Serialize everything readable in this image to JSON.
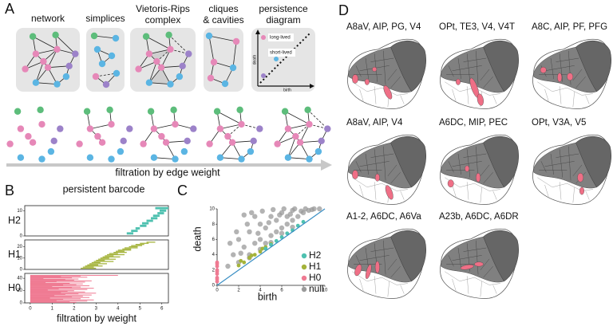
{
  "panel_a": {
    "label": "A",
    "steps": [
      [
        "network"
      ],
      [
        "simplices"
      ],
      [
        "Vietoris-Rips",
        "complex"
      ],
      [
        "cliques",
        "& cavities"
      ],
      [
        "persistence",
        "diagram"
      ]
    ],
    "diagram": {
      "long": "long-lived",
      "short": "short-lived",
      "x_label": "birth",
      "y_label": "death"
    },
    "filtration_label": "filtration by edge weight"
  },
  "chart_data": [
    {
      "type": "barcode",
      "panel_label": "B",
      "title": "persistent barcode",
      "x_label": "filtration by weight",
      "xlim": [
        -0.25,
        6.3
      ],
      "xticks": [
        0,
        1,
        2,
        3,
        4,
        5,
        6
      ],
      "panels": [
        {
          "name": "H2",
          "color": "#4fc1b0",
          "ylim": [
            0,
            12
          ],
          "yticks": [
            0,
            10
          ],
          "intervals": [
            [
              4.4,
              4.7
            ],
            [
              4.6,
              4.9
            ],
            [
              4.8,
              5.0
            ],
            [
              5.0,
              5.3
            ],
            [
              5.1,
              5.4
            ],
            [
              5.3,
              5.6
            ],
            [
              5.5,
              5.8
            ],
            [
              5.6,
              5.9
            ],
            [
              5.8,
              6.1
            ],
            [
              5.9,
              6.2
            ],
            [
              5.7,
              6.3
            ]
          ]
        },
        {
          "name": "H1",
          "color": "#a4b33a",
          "ylim": [
            0,
            26
          ],
          "yticks": [
            0,
            10,
            20
          ],
          "intervals": [
            [
              2.3,
              3.0
            ],
            [
              2.4,
              2.9
            ],
            [
              2.5,
              3.3
            ],
            [
              2.6,
              3.1
            ],
            [
              2.7,
              3.5
            ],
            [
              2.8,
              3.2
            ],
            [
              2.9,
              3.8
            ],
            [
              3.0,
              3.4
            ],
            [
              3.1,
              3.9
            ],
            [
              3.2,
              3.6
            ],
            [
              3.3,
              4.1
            ],
            [
              3.4,
              3.8
            ],
            [
              3.5,
              4.3
            ],
            [
              3.6,
              4.0
            ],
            [
              3.8,
              4.4
            ],
            [
              3.9,
              4.3
            ],
            [
              4.0,
              4.6
            ],
            [
              4.2,
              4.6
            ],
            [
              4.3,
              4.9
            ],
            [
              4.5,
              4.9
            ],
            [
              4.6,
              5.1
            ],
            [
              4.8,
              5.2
            ],
            [
              5.0,
              5.4
            ],
            [
              5.3,
              5.7
            ]
          ]
        },
        {
          "name": "H0",
          "color": "#ef7a92",
          "ylim": [
            0,
            48
          ],
          "yticks": [
            0,
            20,
            40
          ],
          "intervals": [
            [
              0,
              2.1
            ],
            [
              0,
              1.8
            ],
            [
              0,
              2.6
            ],
            [
              0,
              1.2
            ],
            [
              0,
              2.9
            ],
            [
              0,
              1.5
            ],
            [
              0,
              2.3
            ],
            [
              0,
              0.9
            ],
            [
              0,
              2.7
            ],
            [
              0,
              1.9
            ],
            [
              0,
              2.4
            ],
            [
              0,
              1.1
            ],
            [
              0,
              2.8
            ],
            [
              0,
              1.6
            ],
            [
              0,
              2.2
            ],
            [
              0,
              3.0
            ],
            [
              0,
              1.4
            ],
            [
              0,
              2.5
            ],
            [
              0,
              1.7
            ],
            [
              0,
              2.0
            ],
            [
              0,
              0.8
            ],
            [
              0,
              2.6
            ],
            [
              0,
              1.3
            ],
            [
              0,
              2.9
            ],
            [
              0,
              1.9
            ],
            [
              0,
              2.3
            ],
            [
              0,
              1.0
            ],
            [
              0,
              2.7
            ],
            [
              0,
              1.5
            ],
            [
              0,
              2.1
            ],
            [
              0,
              2.4
            ],
            [
              0,
              1.8
            ],
            [
              0,
              0.7
            ],
            [
              0,
              2.5
            ],
            [
              0,
              1.2
            ],
            [
              0,
              2.8
            ],
            [
              0,
              2.0
            ],
            [
              0,
              1.6
            ],
            [
              0,
              2.2
            ],
            [
              0,
              0.6
            ],
            [
              0,
              1.9
            ],
            [
              0,
              2.6
            ],
            [
              0,
              1.4
            ],
            [
              0,
              2.3
            ],
            [
              0,
              4.0
            ]
          ]
        }
      ]
    },
    {
      "type": "scatter",
      "panel_label": "C",
      "x_label": "birth",
      "y_label": "death",
      "xlim": [
        0,
        10
      ],
      "ylim": [
        0,
        10
      ],
      "xticks": [
        0,
        2,
        4,
        6,
        8,
        10
      ],
      "yticks": [
        0,
        2,
        4,
        6,
        8,
        10
      ],
      "series": [
        {
          "name": "H2",
          "color": "#4fc1b0",
          "x": [
            4.5,
            5,
            5.5,
            6,
            6.5,
            7,
            7.5,
            8
          ],
          "y": [
            4.8,
            5.3,
            5.8,
            6.3,
            6.8,
            7.2,
            7.8,
            8.3
          ]
        },
        {
          "name": "H1",
          "color": "#a4b33a",
          "x": [
            2,
            2.5,
            3,
            3.5,
            4,
            4.5,
            5,
            2.2,
            3.2,
            4.2
          ],
          "y": [
            2.6,
            3,
            3.6,
            4,
            4.4,
            5,
            5.4,
            3.2,
            3.9,
            4.8
          ]
        },
        {
          "name": "H0",
          "color": "#ef7a92",
          "x": [
            0,
            0,
            0,
            0,
            0,
            0,
            0,
            0,
            0
          ],
          "y": [
            0.5,
            1,
            1.5,
            2,
            2.5,
            3,
            0.8,
            1.8,
            2.8
          ]
        },
        {
          "name": "null",
          "color": "#9a9a9a",
          "x": [
            1,
            1.5,
            2,
            2,
            2.5,
            3,
            3,
            3.5,
            3.5,
            4,
            4,
            4.5,
            4.5,
            5,
            5,
            5.5,
            5.5,
            6,
            6,
            6.5,
            6.5,
            7,
            7,
            7.5,
            8,
            8.5,
            2.8,
            1.8,
            3.2,
            4.2,
            5.2,
            6.2,
            7.2,
            8.2,
            9,
            9.5,
            4.8,
            3.8,
            2.2,
            6.8,
            5.8,
            7.8,
            1.2,
            2.5,
            8.8,
            3,
            4,
            5,
            6,
            7
          ],
          "y": [
            2.5,
            4,
            3,
            6,
            5,
            4,
            7,
            5.5,
            9,
            6,
            8,
            5.5,
            7.5,
            6.5,
            9,
            7,
            8.5,
            7.5,
            9.5,
            8,
            9,
            8.5,
            9.8,
            9,
            9.5,
            9.8,
            8,
            7,
            9.5,
            9.7,
            9.9,
            10,
            10,
            10,
            10,
            10,
            8.2,
            6.8,
            4.2,
            9.3,
            9.2,
            9.7,
            5.5,
            9.2,
            9.9,
            3.6,
            4.7,
            5.6,
            6.8,
            7.6
          ]
        }
      ]
    }
  ],
  "panel_d": {
    "label": "D",
    "maps": [
      "A8aV, AIP, PG, V4",
      "OPt, TE3, V4, V4T",
      "A8C, AIP, PF, PFG",
      "A8aV, AIP, V4",
      "A6DC, MIP, PEC",
      "OPt, V3A, V5",
      "A1-2, A6DC, A6Va",
      "A23b, A6DC, A6DR"
    ]
  }
}
